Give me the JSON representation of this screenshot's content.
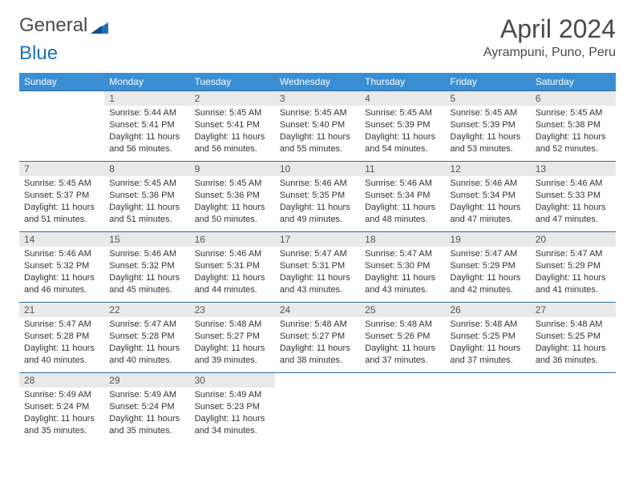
{
  "logo": {
    "text1": "General",
    "text2": "Blue",
    "accent_color": "#1d6fb8"
  },
  "title": "April 2024",
  "location": "Ayrampuni, Puno, Peru",
  "colors": {
    "header_bg": "#3a8fd4",
    "header_text": "#ffffff",
    "daynum_bg": "#e9e9e9",
    "daynum_text": "#555555",
    "rule": "#2f6aa0",
    "body_text": "#333333",
    "page_bg": "#ffffff"
  },
  "dow": [
    "Sunday",
    "Monday",
    "Tuesday",
    "Wednesday",
    "Thursday",
    "Friday",
    "Saturday"
  ],
  "start_offset": 1,
  "days": [
    {
      "n": 1,
      "sr": "5:44 AM",
      "ss": "5:41 PM",
      "dl": "11 hours and 56 minutes."
    },
    {
      "n": 2,
      "sr": "5:45 AM",
      "ss": "5:41 PM",
      "dl": "11 hours and 56 minutes."
    },
    {
      "n": 3,
      "sr": "5:45 AM",
      "ss": "5:40 PM",
      "dl": "11 hours and 55 minutes."
    },
    {
      "n": 4,
      "sr": "5:45 AM",
      "ss": "5:39 PM",
      "dl": "11 hours and 54 minutes."
    },
    {
      "n": 5,
      "sr": "5:45 AM",
      "ss": "5:39 PM",
      "dl": "11 hours and 53 minutes."
    },
    {
      "n": 6,
      "sr": "5:45 AM",
      "ss": "5:38 PM",
      "dl": "11 hours and 52 minutes."
    },
    {
      "n": 7,
      "sr": "5:45 AM",
      "ss": "5:37 PM",
      "dl": "11 hours and 51 minutes."
    },
    {
      "n": 8,
      "sr": "5:45 AM",
      "ss": "5:36 PM",
      "dl": "11 hours and 51 minutes."
    },
    {
      "n": 9,
      "sr": "5:45 AM",
      "ss": "5:36 PM",
      "dl": "11 hours and 50 minutes."
    },
    {
      "n": 10,
      "sr": "5:46 AM",
      "ss": "5:35 PM",
      "dl": "11 hours and 49 minutes."
    },
    {
      "n": 11,
      "sr": "5:46 AM",
      "ss": "5:34 PM",
      "dl": "11 hours and 48 minutes."
    },
    {
      "n": 12,
      "sr": "5:46 AM",
      "ss": "5:34 PM",
      "dl": "11 hours and 47 minutes."
    },
    {
      "n": 13,
      "sr": "5:46 AM",
      "ss": "5:33 PM",
      "dl": "11 hours and 47 minutes."
    },
    {
      "n": 14,
      "sr": "5:46 AM",
      "ss": "5:32 PM",
      "dl": "11 hours and 46 minutes."
    },
    {
      "n": 15,
      "sr": "5:46 AM",
      "ss": "5:32 PM",
      "dl": "11 hours and 45 minutes."
    },
    {
      "n": 16,
      "sr": "5:46 AM",
      "ss": "5:31 PM",
      "dl": "11 hours and 44 minutes."
    },
    {
      "n": 17,
      "sr": "5:47 AM",
      "ss": "5:31 PM",
      "dl": "11 hours and 43 minutes."
    },
    {
      "n": 18,
      "sr": "5:47 AM",
      "ss": "5:30 PM",
      "dl": "11 hours and 43 minutes."
    },
    {
      "n": 19,
      "sr": "5:47 AM",
      "ss": "5:29 PM",
      "dl": "11 hours and 42 minutes."
    },
    {
      "n": 20,
      "sr": "5:47 AM",
      "ss": "5:29 PM",
      "dl": "11 hours and 41 minutes."
    },
    {
      "n": 21,
      "sr": "5:47 AM",
      "ss": "5:28 PM",
      "dl": "11 hours and 40 minutes."
    },
    {
      "n": 22,
      "sr": "5:47 AM",
      "ss": "5:28 PM",
      "dl": "11 hours and 40 minutes."
    },
    {
      "n": 23,
      "sr": "5:48 AM",
      "ss": "5:27 PM",
      "dl": "11 hours and 39 minutes."
    },
    {
      "n": 24,
      "sr": "5:48 AM",
      "ss": "5:27 PM",
      "dl": "11 hours and 38 minutes."
    },
    {
      "n": 25,
      "sr": "5:48 AM",
      "ss": "5:26 PM",
      "dl": "11 hours and 37 minutes."
    },
    {
      "n": 26,
      "sr": "5:48 AM",
      "ss": "5:25 PM",
      "dl": "11 hours and 37 minutes."
    },
    {
      "n": 27,
      "sr": "5:48 AM",
      "ss": "5:25 PM",
      "dl": "11 hours and 36 minutes."
    },
    {
      "n": 28,
      "sr": "5:49 AM",
      "ss": "5:24 PM",
      "dl": "11 hours and 35 minutes."
    },
    {
      "n": 29,
      "sr": "5:49 AM",
      "ss": "5:24 PM",
      "dl": "11 hours and 35 minutes."
    },
    {
      "n": 30,
      "sr": "5:49 AM",
      "ss": "5:23 PM",
      "dl": "11 hours and 34 minutes."
    }
  ],
  "labels": {
    "sunrise": "Sunrise:",
    "sunset": "Sunset:",
    "daylight": "Daylight:"
  }
}
